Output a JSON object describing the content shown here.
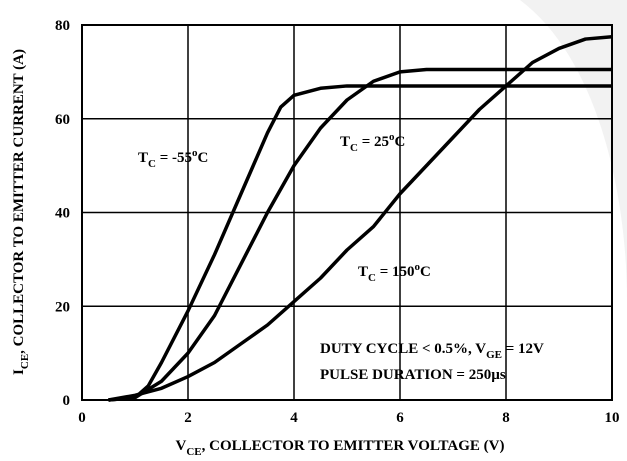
{
  "chart_data": {
    "type": "line",
    "xlabel": [
      {
        "text": "V"
      },
      {
        "text": "CE",
        "sub": true
      },
      {
        "text": ", COLLECTOR TO EMITTER VOLTAGE (V)"
      }
    ],
    "ylabel": [
      {
        "text": "I"
      },
      {
        "text": "CE",
        "sub": true
      },
      {
        "text": ", COLLECTOR TO EMITTER CURRENT (A)"
      }
    ],
    "xlim": [
      0,
      10
    ],
    "ylim": [
      0,
      80
    ],
    "xticks": [
      0,
      2,
      4,
      6,
      8,
      10
    ],
    "yticks": [
      0,
      20,
      40,
      60,
      80
    ],
    "grid": true,
    "series": [
      {
        "color": "#000000",
        "x": [
          0.5,
          1,
          1.25,
          1.5,
          2,
          2.5,
          3,
          3.5,
          3.75,
          4,
          4.5,
          5,
          6,
          8,
          10
        ],
        "values": [
          0,
          0.5,
          3,
          8,
          19,
          31,
          44,
          57,
          62.5,
          65,
          66.5,
          67,
          67,
          67,
          67
        ]
      },
      {
        "color": "#000000",
        "x": [
          0.5,
          1,
          1.5,
          2,
          2.5,
          3,
          3.5,
          4,
          4.5,
          5,
          5.5,
          6,
          6.5,
          8,
          10
        ],
        "values": [
          0,
          0.5,
          4,
          10,
          18,
          29,
          40,
          50,
          58,
          64,
          68,
          70,
          70.5,
          70.5,
          70.5
        ]
      },
      {
        "color": "#000000",
        "x": [
          0.5,
          1,
          1.5,
          2,
          2.5,
          3,
          3.5,
          4,
          4.5,
          5,
          5.5,
          6,
          6.5,
          7,
          7.5,
          8,
          8.5,
          9,
          9.5,
          10
        ],
        "values": [
          0,
          1,
          2.5,
          5,
          8,
          12,
          16,
          21,
          26,
          32,
          37,
          44,
          50,
          56,
          62,
          67,
          72,
          75,
          77,
          77.5
        ]
      }
    ],
    "annotations": [
      {
        "parts": [
          {
            "text": "T"
          },
          {
            "text": "C",
            "sub": true
          },
          {
            "text": " = -55"
          },
          {
            "text": "o",
            "sup": true
          },
          {
            "text": "C"
          }
        ]
      },
      {
        "parts": [
          {
            "text": "T"
          },
          {
            "text": "C",
            "sub": true
          },
          {
            "text": " = 25"
          },
          {
            "text": "o",
            "sup": true
          },
          {
            "text": "C"
          }
        ]
      },
      {
        "parts": [
          {
            "text": "T"
          },
          {
            "text": "C",
            "sub": true
          },
          {
            "text": " = 150"
          },
          {
            "text": "o",
            "sup": true
          },
          {
            "text": "C"
          }
        ]
      },
      {
        "parts": [
          {
            "text": "DUTY CYCLE < 0.5%, V"
          },
          {
            "text": "GE",
            "sub": true
          },
          {
            "text": " = 12V"
          }
        ]
      },
      {
        "parts": [
          {
            "text": "PULSE DURATION = 250µs"
          }
        ]
      }
    ]
  }
}
